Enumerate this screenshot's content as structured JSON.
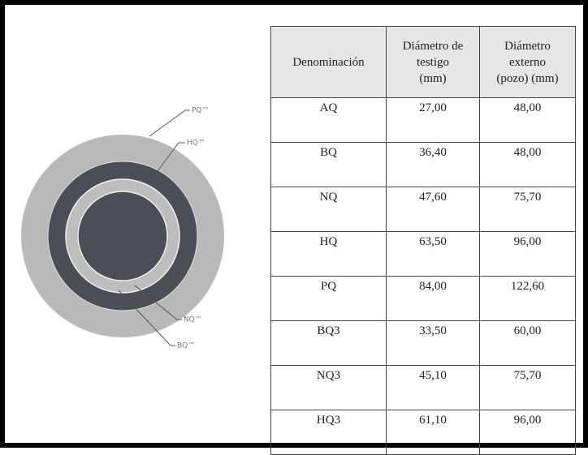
{
  "diagram": {
    "labels": [
      "PQ™",
      "HQ™",
      "NQ™",
      "BQ™"
    ]
  },
  "table": {
    "header": [
      [
        "Denominación"
      ],
      [
        "Diámetro de",
        "testigo",
        "(mm)"
      ],
      [
        "Diámetro",
        "externo",
        "(pozo) (mm)"
      ]
    ],
    "rows": [
      [
        "AQ",
        "27,00",
        "48,00"
      ],
      [
        "BQ",
        "36,40",
        "48,00"
      ],
      [
        "NQ",
        "47,60",
        "75,70"
      ],
      [
        "HQ",
        "63,50",
        "96,00"
      ],
      [
        "PQ",
        "84,00",
        "122,60"
      ],
      [
        "BQ3",
        "33,50",
        "60,00"
      ],
      [
        "NQ3",
        "45,10",
        "75,70"
      ],
      [
        "HQ3",
        "61,10",
        "96,00"
      ]
    ]
  }
}
